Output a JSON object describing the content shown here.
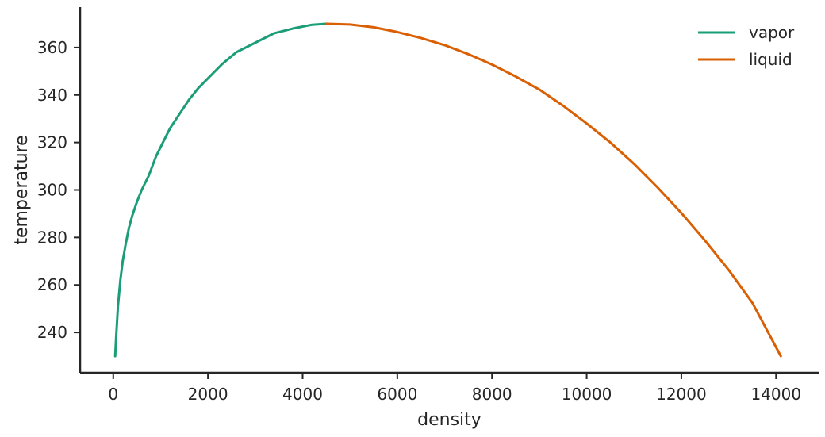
{
  "chart_data": {
    "type": "line",
    "xlabel": "density",
    "ylabel": "temperature",
    "xlim": [
      -700,
      14900
    ],
    "ylim": [
      223,
      377
    ],
    "x_ticks": [
      0,
      2000,
      4000,
      6000,
      8000,
      10000,
      12000,
      14000
    ],
    "x_tick_labels": [
      "0",
      "2000",
      "4000",
      "6000",
      "8000",
      "10000",
      "12000",
      "14000"
    ],
    "y_ticks": [
      240,
      260,
      280,
      300,
      320,
      340,
      360
    ],
    "y_tick_labels": [
      "240",
      "260",
      "280",
      "300",
      "320",
      "340",
      "360"
    ],
    "grid": false,
    "legend_position": "top-right",
    "series": [
      {
        "name": "vapor",
        "color": "#1b9e77",
        "x": [
          40,
          60,
          100,
          150,
          200,
          260,
          330,
          400,
          500,
          600,
          750,
          900,
          1050,
          1200,
          1400,
          1600,
          1800,
          2000,
          2300,
          2600,
          3000,
          3400,
          3800,
          4200,
          4500
        ],
        "y": [
          230,
          238,
          251,
          262,
          270,
          277,
          284,
          289,
          295,
          300,
          306,
          314,
          320,
          326,
          332,
          338,
          343,
          347,
          353,
          358,
          362,
          366,
          368,
          369.6,
          370
        ]
      },
      {
        "name": "liquid",
        "color": "#d95f02",
        "x": [
          4500,
          5000,
          5500,
          6000,
          6500,
          7000,
          7500,
          8000,
          8500,
          9000,
          9500,
          10000,
          10500,
          11000,
          11500,
          12000,
          12500,
          13000,
          13500,
          14100
        ],
        "y": [
          370,
          369.7,
          368.5,
          366.5,
          364,
          361,
          357.2,
          352.8,
          347.8,
          342.3,
          335.5,
          328,
          320,
          311,
          301,
          290.3,
          278.7,
          266.3,
          252.5,
          230
        ]
      }
    ]
  }
}
